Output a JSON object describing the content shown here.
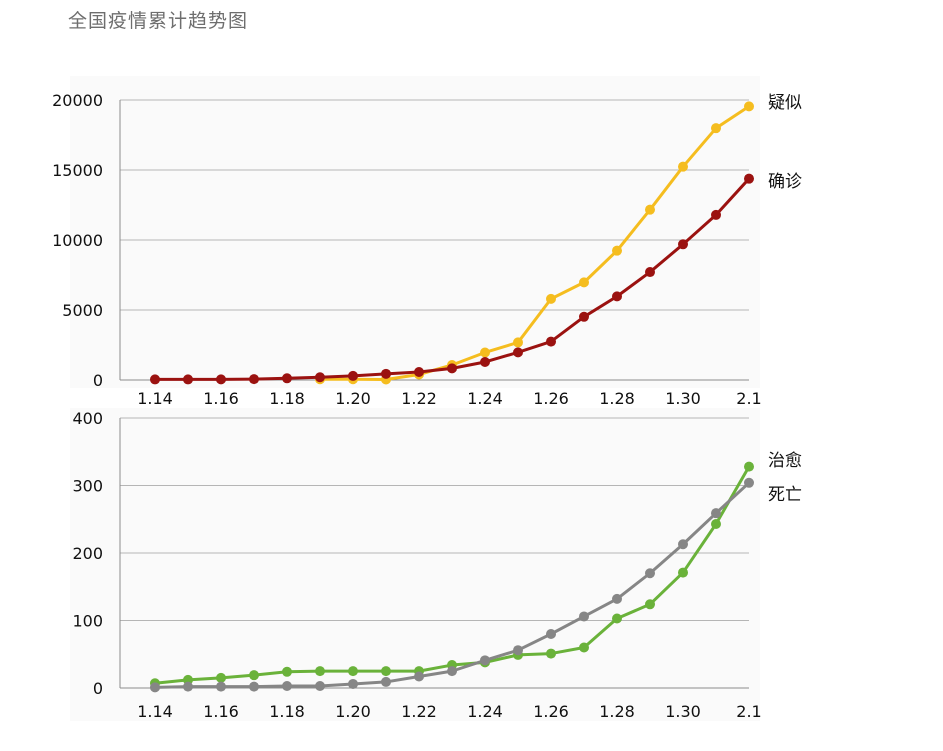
{
  "title": "全国疫情累计趋势图",
  "colors": {
    "suspected": "#f5bd1f",
    "confirmed": "#9b1210",
    "cured": "#6ab23a",
    "dead": "#868686",
    "grid": "#b5b5b5",
    "axis": "#8c8c8c",
    "plot_bg": "#fafafa"
  },
  "chart_data": [
    {
      "type": "line",
      "title": "",
      "xlabel": "",
      "ylabel": "",
      "x": [
        "1.14",
        "1.15",
        "1.16",
        "1.17",
        "1.18",
        "1.19",
        "1.20",
        "1.21",
        "1.22",
        "1.23",
        "1.24",
        "1.25",
        "1.26",
        "1.27",
        "1.28",
        "1.29",
        "1.30",
        "1.31",
        "2.1"
      ],
      "x_tick_labels": [
        "1.14",
        "1.16",
        "1.18",
        "1.20",
        "1.22",
        "1.24",
        "1.26",
        "1.28",
        "1.30",
        "2.1"
      ],
      "ylim": [
        0,
        20000
      ],
      "y_ticks": [
        "0",
        "5000",
        "10000",
        "15000",
        "20000"
      ],
      "grid": true,
      "legend": "right",
      "series": [
        {
          "name": "疑似",
          "color_key": "suspected",
          "values": [
            null,
            null,
            null,
            null,
            null,
            54,
            54,
            37,
            393,
            1072,
            1965,
            2684,
            5794,
            6973,
            9239,
            12167,
            15238,
            17988,
            19544
          ]
        },
        {
          "name": "确诊",
          "color_key": "confirmed",
          "values": [
            41,
            41,
            45,
            62,
            121,
            198,
            291,
            440,
            571,
            830,
            1287,
            1975,
            2744,
            4515,
            5974,
            7711,
            9692,
            11791,
            14380
          ]
        }
      ]
    },
    {
      "type": "line",
      "title": "",
      "xlabel": "",
      "ylabel": "",
      "x": [
        "1.14",
        "1.15",
        "1.16",
        "1.17",
        "1.18",
        "1.19",
        "1.20",
        "1.21",
        "1.22",
        "1.23",
        "1.24",
        "1.25",
        "1.26",
        "1.27",
        "1.28",
        "1.29",
        "1.30",
        "1.31",
        "2.1"
      ],
      "x_tick_labels": [
        "1.14",
        "1.16",
        "1.18",
        "1.20",
        "1.22",
        "1.24",
        "1.26",
        "1.28",
        "1.30",
        "2.1"
      ],
      "ylim": [
        0,
        400
      ],
      "y_ticks": [
        "0",
        "100",
        "200",
        "300",
        "400"
      ],
      "grid": true,
      "legend": "right",
      "series": [
        {
          "name": "治愈",
          "color_key": "cured",
          "values": [
            7,
            12,
            15,
            19,
            24,
            25,
            25,
            25,
            25,
            34,
            38,
            49,
            51,
            60,
            103,
            124,
            171,
            243,
            328
          ]
        },
        {
          "name": "死亡",
          "color_key": "dead",
          "values": [
            1,
            2,
            2,
            2,
            3,
            3,
            6,
            9,
            17,
            25,
            41,
            56,
            80,
            106,
            132,
            170,
            213,
            259,
            304
          ]
        }
      ]
    }
  ]
}
